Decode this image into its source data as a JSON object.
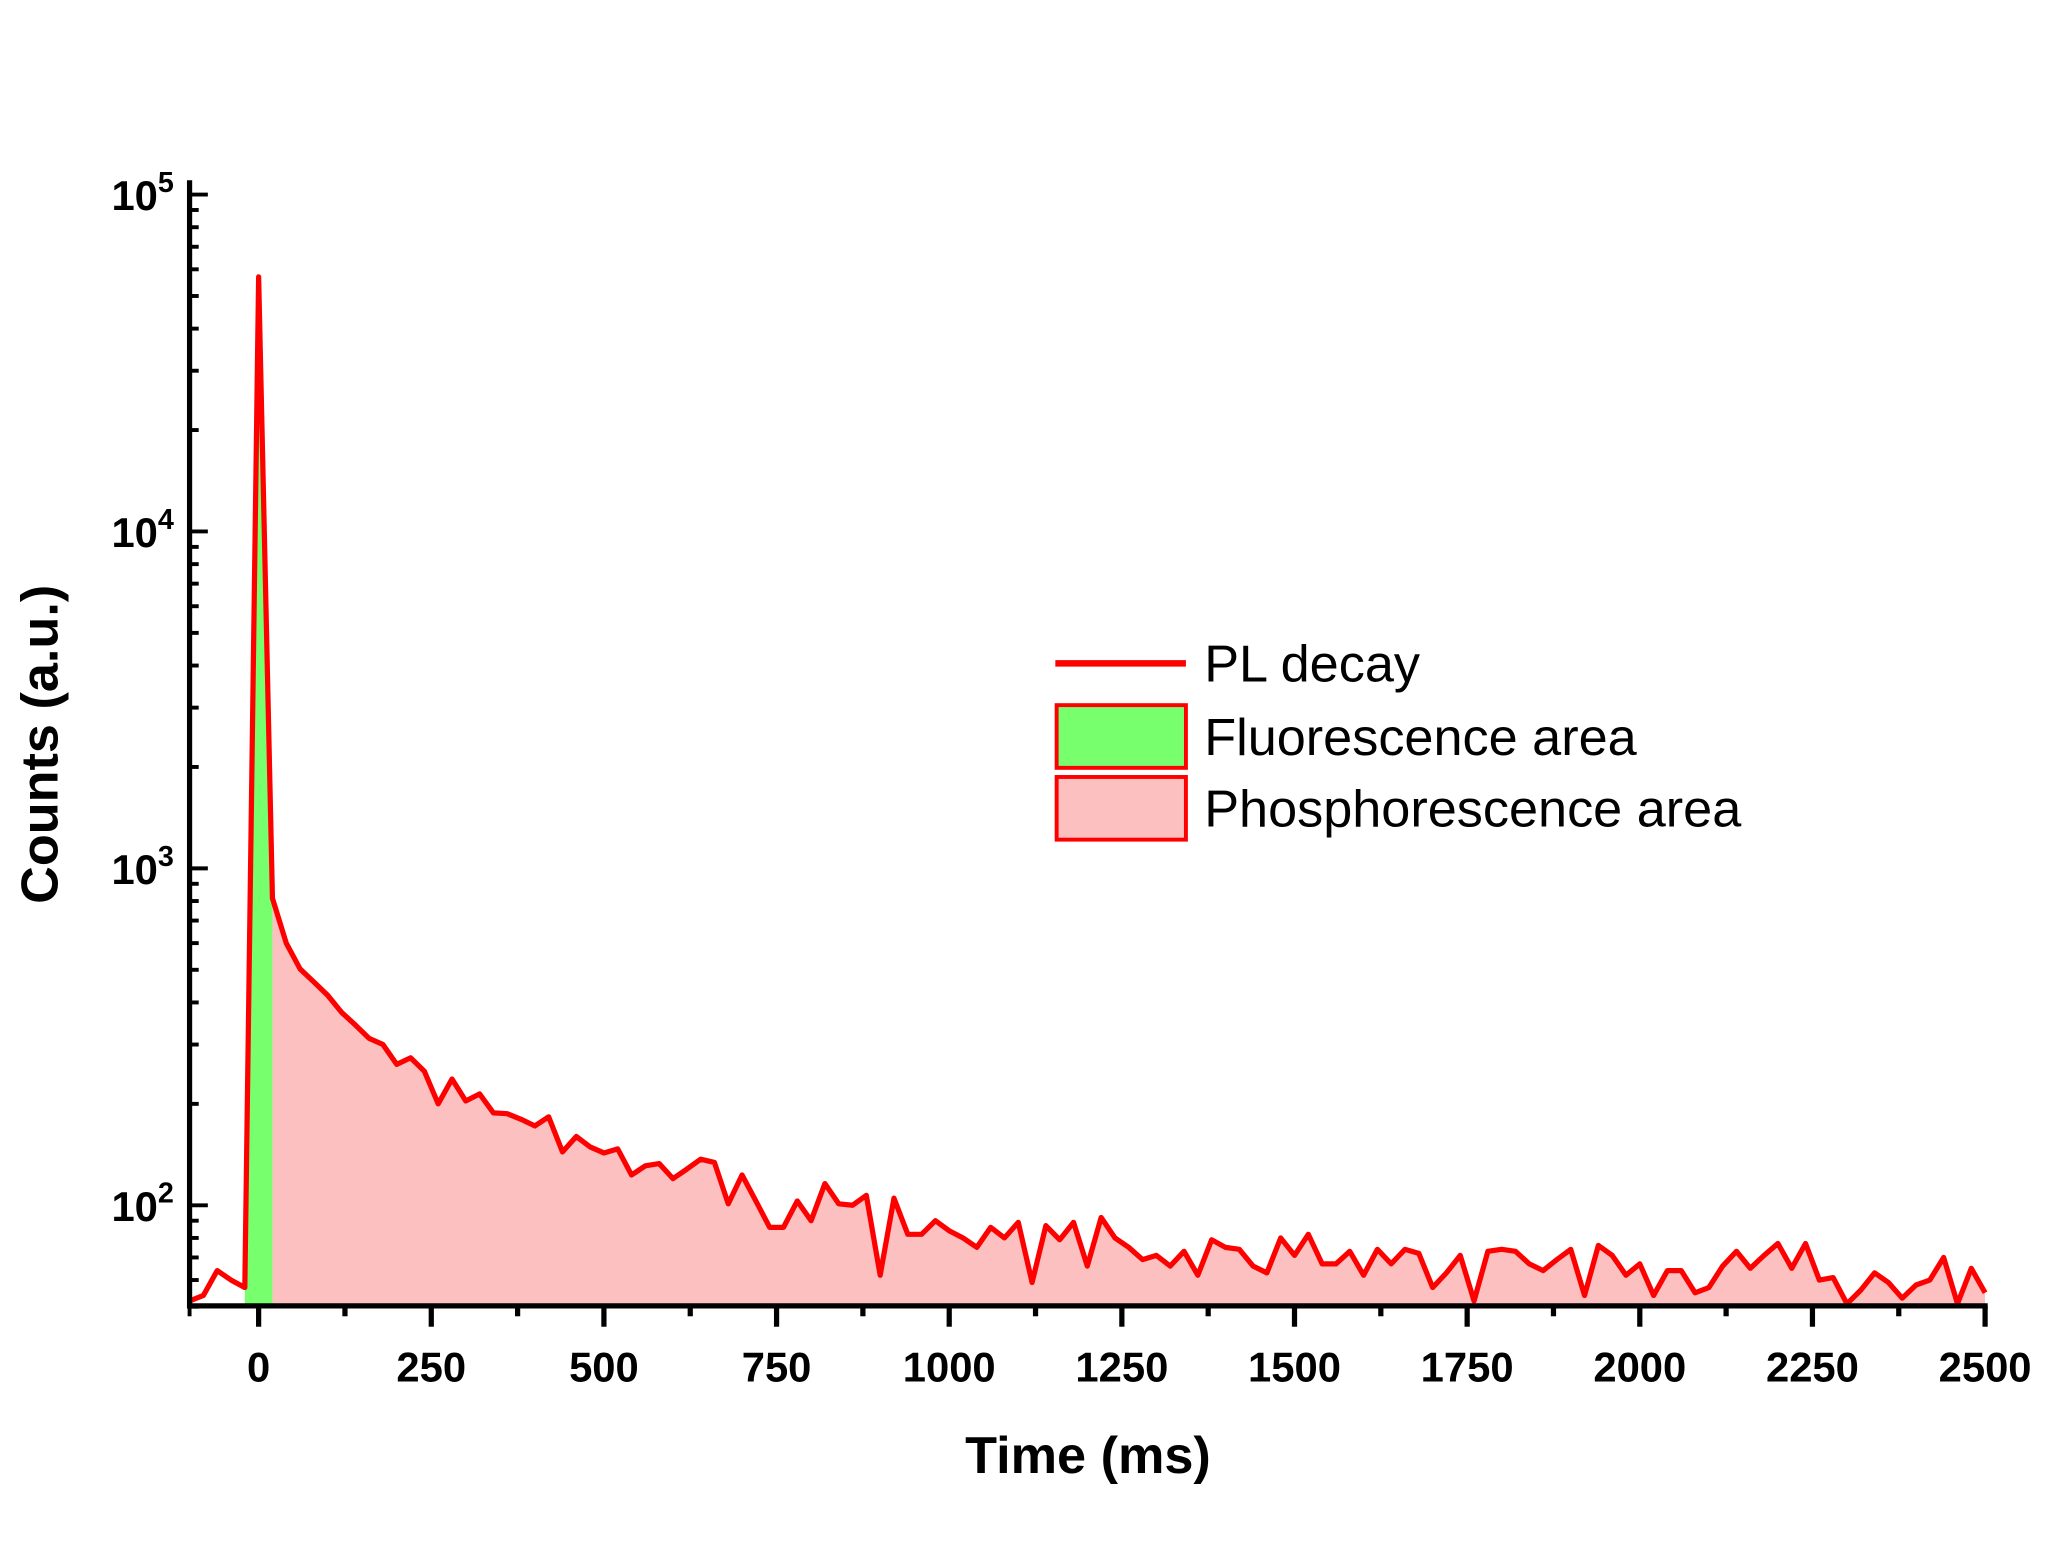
{
  "chart_data": {
    "type": "area",
    "xlabel": "Time (ms)",
    "ylabel": "Counts (a.u.)",
    "xlim": [
      -100,
      2500
    ],
    "ylim": [
      50,
      100000
    ],
    "yscale": "log",
    "grid": false,
    "legend_position": "center-right",
    "x_ticks": [
      "0",
      "250",
      "500",
      "750",
      "1000",
      "1250",
      "1500",
      "1750",
      "2000",
      "2250",
      "2500"
    ],
    "y_ticks": [
      {
        "base": "10",
        "exp": "2"
      },
      {
        "base": "10",
        "exp": "3"
      },
      {
        "base": "10",
        "exp": "4"
      },
      {
        "base": "10",
        "exp": "5"
      }
    ],
    "colors": {
      "line": "#ff0000",
      "fluorescence": "#77ff6e",
      "phosphorescence": "#fcc0c0"
    },
    "series": [
      {
        "name": "PL decay",
        "x": [
          -100,
          -80,
          -60,
          -40,
          -20,
          0,
          20,
          40,
          60,
          80,
          100,
          120,
          140,
          160,
          180,
          200,
          220,
          240,
          260,
          280,
          300,
          320,
          340,
          360,
          380,
          400,
          420,
          440,
          460,
          480,
          500,
          520,
          540,
          560,
          580,
          600,
          620,
          640,
          660,
          680,
          700,
          720,
          740,
          760,
          780,
          800,
          820,
          840,
          860,
          880,
          900,
          920,
          940,
          960,
          980,
          1000,
          1020,
          1040,
          1060,
          1080,
          1100,
          1120,
          1140,
          1160,
          1180,
          1200,
          1220,
          1240,
          1260,
          1280,
          1300,
          1320,
          1340,
          1360,
          1380,
          1400,
          1420,
          1440,
          1460,
          1480,
          1500,
          1520,
          1540,
          1560,
          1580,
          1600,
          1620,
          1640,
          1660,
          1680,
          1700,
          1720,
          1740,
          1760,
          1780,
          1800,
          1820,
          1840,
          1860,
          1880,
          1900,
          1920,
          1940,
          1960,
          1980,
          2000,
          2020,
          2040,
          2060,
          2080,
          2100,
          2120,
          2140,
          2160,
          2180,
          2200,
          2220,
          2240,
          2260,
          2280,
          2300,
          2320,
          2340,
          2360,
          2380,
          2400,
          2420,
          2440,
          2460,
          2480,
          2500
        ],
        "y": [
          52,
          54,
          64,
          60,
          57,
          57000,
          815,
          600,
          503,
          460,
          420,
          374,
          343,
          313,
          300,
          262,
          274,
          250,
          200,
          237,
          204,
          214,
          188,
          187,
          180,
          172,
          183,
          144,
          160,
          149,
          143,
          147,
          123,
          131,
          133,
          120,
          128,
          137,
          134,
          101,
          123,
          103,
          86,
          86,
          103,
          90,
          116,
          101,
          100,
          107,
          62,
          105,
          82,
          82,
          90,
          84,
          80,
          75,
          86,
          80,
          89,
          59,
          87,
          79,
          89,
          66,
          92,
          80,
          75,
          69,
          71,
          66,
          73,
          62,
          79,
          75,
          74,
          66,
          63,
          80,
          71,
          82,
          67,
          67,
          73,
          62,
          74,
          67,
          74,
          72,
          57,
          63,
          71,
          52,
          73,
          74,
          73,
          67,
          64,
          69,
          74,
          54,
          76,
          71,
          62,
          67,
          54,
          64,
          64,
          55,
          57,
          66,
          73,
          65,
          71,
          77,
          65,
          77,
          60,
          61,
          51,
          56,
          63,
          59,
          53,
          58,
          60,
          70,
          51,
          65,
          55
        ]
      },
      {
        "name": "Fluorescence area",
        "x_range": [
          -20,
          20
        ]
      },
      {
        "name": "Phosphorescence area",
        "x_range": [
          20,
          2500
        ]
      }
    ]
  }
}
